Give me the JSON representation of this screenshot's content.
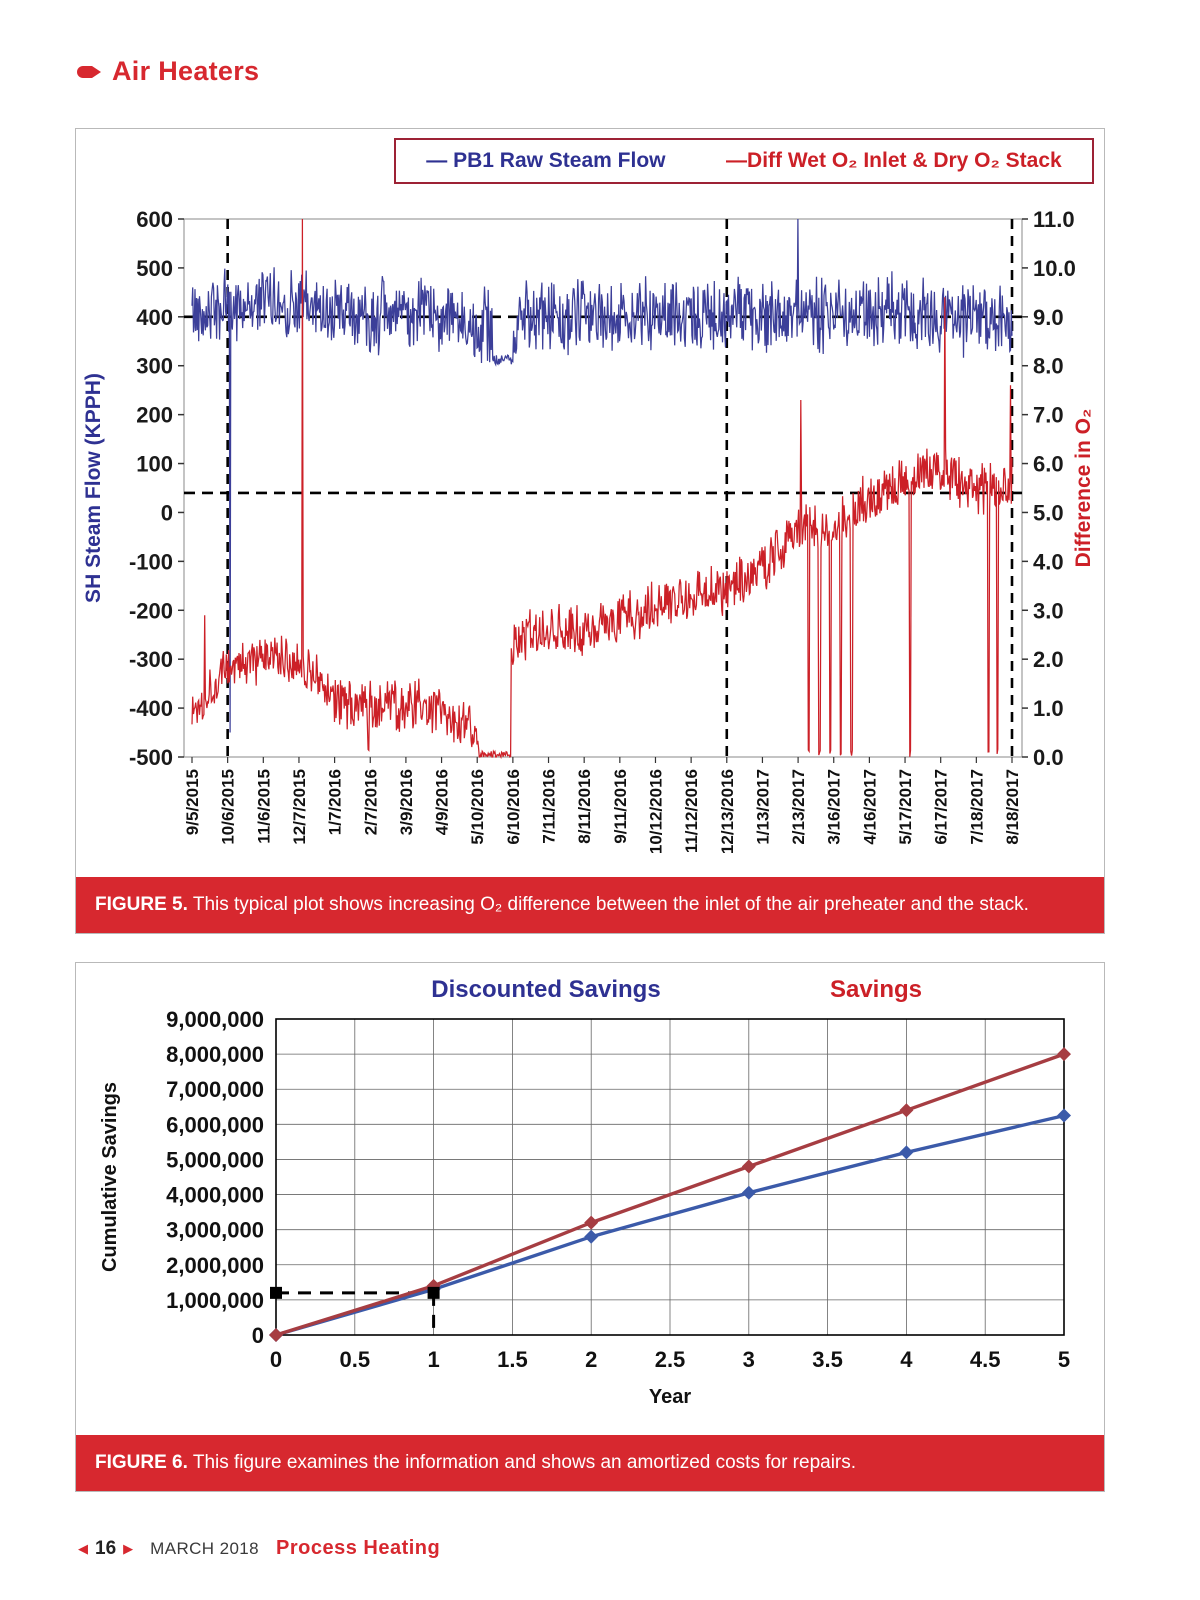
{
  "header": {
    "title": "Air Heaters"
  },
  "figure5": {
    "caption_tag": "FIGURE 5.",
    "caption_text": "This typical plot shows increasing O₂ difference between the inlet of the air preheater and the stack."
  },
  "figure6": {
    "caption_tag": "FIGURE 6.",
    "caption_text": "This figure examines the information and shows an amortized costs for repairs."
  },
  "footer": {
    "page_number": "16",
    "issue": "MARCH 2018",
    "publication": "Process Heating"
  },
  "colors": {
    "accent_red": "#d7282f",
    "navy": "#2e3192",
    "chart_red": "#cc2027"
  },
  "chart_data": [
    {
      "id": "figure5",
      "type": "line",
      "title": "",
      "legend": [
        {
          "label": "— PB1 Raw Steam Flow",
          "color": "#2e3192"
        },
        {
          "label": "—Diff Wet O₂ Inlet & Dry O₂ Stack",
          "color": "#cc2027"
        }
      ],
      "x_tick_labels": [
        "9/5/2015",
        "10/6/2015",
        "11/6/2015",
        "12/7/2015",
        "1/7/2016",
        "2/7/2016",
        "3/9/2016",
        "4/9/2016",
        "5/10/2016",
        "6/10/2016",
        "7/11/2016",
        "8/11/2016",
        "9/11/2016",
        "10/12/2016",
        "11/12/2016",
        "12/13/2016",
        "1/13/2017",
        "2/13/2017",
        "3/16/2017",
        "4/16/2017",
        "5/17/2017",
        "6/17/2017",
        "7/18/2017",
        "8/18/2017"
      ],
      "left_axis": {
        "label": "SH Steam Flow (KPPH)",
        "min": -500,
        "max": 600,
        "tick_step": 100,
        "color": "#2e3192"
      },
      "right_axis": {
        "label": "Difference in O₂",
        "min": 0,
        "max": 11,
        "tick_step": 1,
        "color": "#cc2027"
      },
      "series": [
        {
          "name": "PB1 Raw Steam Flow",
          "axis": "left",
          "color": "#3c3f99",
          "noise": 85,
          "trend": [
            410,
            420,
            430,
            425,
            410,
            400,
            405,
            400,
            385,
            395,
            400,
            398,
            402,
            405,
            400,
            408,
            398,
            415,
            402,
            408,
            412,
            400,
            396,
            390
          ],
          "flat_segments": [
            {
              "from": 8.45,
              "to": 9.0,
              "value": 312
            }
          ],
          "spikes": [
            {
              "t": 1.06,
              "v": -450
            },
            {
              "t": 17.0,
              "v": 600
            }
          ]
        },
        {
          "name": "Diff Wet O₂ Inlet & Dry O₂ Stack",
          "axis": "right",
          "color": "#cc2027",
          "noise": 0.62,
          "trend": [
            0.9,
            1.8,
            2.0,
            2.0,
            1.2,
            1.0,
            1.1,
            0.9,
            0.35,
            2.4,
            2.6,
            2.5,
            2.8,
            3.1,
            3.3,
            3.5,
            3.9,
            4.7,
            4.7,
            5.3,
            5.7,
            5.9,
            5.4,
            5.6
          ],
          "flat_segments": [
            {
              "from": 8.08,
              "to": 8.95,
              "value": 0.05
            }
          ],
          "bottom_drops": [
            4.95,
            17.3,
            17.6,
            17.9,
            18.2,
            18.5,
            20.15,
            22.35,
            22.6
          ],
          "spikes": [
            {
              "t": 0.35,
              "v": 2.9
            },
            {
              "t": 3.1,
              "v": 11.0
            },
            {
              "t": 17.07,
              "v": 7.3
            },
            {
              "t": 21.12,
              "v": 9.4
            },
            {
              "t": 22.95,
              "v": 7.6
            }
          ]
        }
      ],
      "reference_lines": {
        "horizontal": [
          {
            "axis": "left",
            "value": 400
          },
          {
            "axis": "right",
            "value": 5.4
          }
        ],
        "vertical_x_labels": [
          "10/6/2015",
          "12/13/2016",
          "8/18/2017"
        ]
      }
    },
    {
      "id": "figure6",
      "type": "line",
      "xlabel": "Year",
      "ylabel": "Cumulative Savings",
      "x": [
        0,
        1,
        2,
        3,
        4,
        5
      ],
      "x_ticks": [
        0,
        0.5,
        1,
        1.5,
        2,
        2.5,
        3,
        3.5,
        4,
        4.5,
        5
      ],
      "ylim": [
        0,
        9000000
      ],
      "y_tick_step": 1000000,
      "grid": true,
      "series": [
        {
          "name": "Discounted Savings",
          "color": "#3b5aa9",
          "legend_color": "#2e3192",
          "values": [
            0,
            1300000,
            2800000,
            4050000,
            5200000,
            6250000
          ]
        },
        {
          "name": "Savings",
          "color": "#a63d42",
          "legend_color": "#cc2027",
          "values": [
            0,
            1400000,
            3200000,
            4800000,
            6400000,
            8000000
          ]
        }
      ],
      "payback_marker": {
        "y": 1200000,
        "x_from": 0,
        "x_to": 1,
        "note": "dashed payback line with square endpoints and vertical drop at year 1"
      }
    }
  ]
}
